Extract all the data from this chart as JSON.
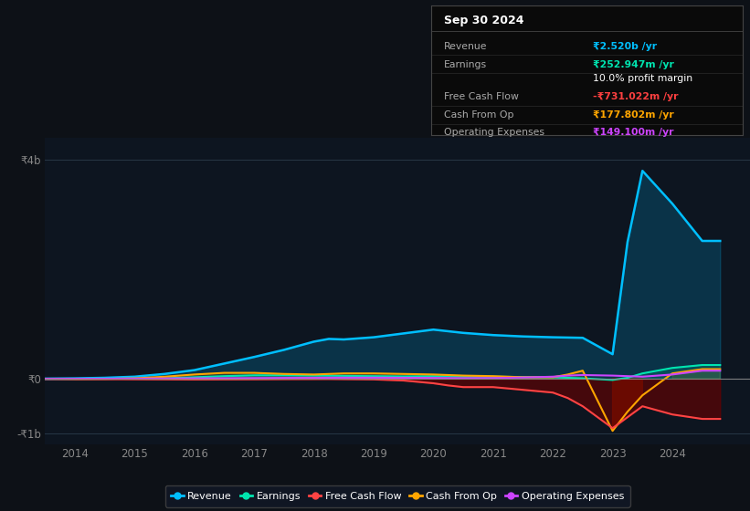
{
  "background_color": "#0d1117",
  "plot_bg_color": "#0d1520",
  "title": "Sep 30 2024",
  "info_box_rows": [
    {
      "label": "Revenue",
      "value": "₹2.520b /yr",
      "value_color": "#00bfff"
    },
    {
      "label": "Earnings",
      "value": "₹252.947m /yr",
      "value_color": "#00e5b0"
    },
    {
      "label": "",
      "value": "10.0% profit margin",
      "value_color": "#ffffff"
    },
    {
      "label": "Free Cash Flow",
      "value": "-₹731.022m /yr",
      "value_color": "#ff4040"
    },
    {
      "label": "Cash From Op",
      "value": "₹177.802m /yr",
      "value_color": "#ffa500"
    },
    {
      "label": "Operating Expenses",
      "value": "₹149.100m /yr",
      "value_color": "#cc44ff"
    }
  ],
  "years": [
    2013.5,
    2014.0,
    2014.5,
    2015.0,
    2015.5,
    2016.0,
    2016.5,
    2017.0,
    2017.5,
    2018.0,
    2018.25,
    2018.5,
    2019.0,
    2019.5,
    2020.0,
    2020.25,
    2020.5,
    2021.0,
    2021.5,
    2022.0,
    2022.25,
    2022.5,
    2023.0,
    2023.25,
    2023.5,
    2024.0,
    2024.5,
    2024.8
  ],
  "revenue": [
    5000000,
    10000000,
    20000000,
    40000000,
    90000000,
    160000000,
    280000000,
    400000000,
    530000000,
    680000000,
    730000000,
    720000000,
    760000000,
    830000000,
    900000000,
    870000000,
    840000000,
    800000000,
    775000000,
    760000000,
    755000000,
    750000000,
    450000000,
    2500000000,
    3800000000,
    3200000000,
    2520000000,
    2520000000
  ],
  "earnings": [
    0,
    0,
    2000000,
    5000000,
    12000000,
    30000000,
    50000000,
    65000000,
    65000000,
    60000000,
    58000000,
    55000000,
    50000000,
    45000000,
    50000000,
    48000000,
    42000000,
    40000000,
    35000000,
    30000000,
    20000000,
    10000000,
    -20000000,
    20000000,
    100000000,
    200000000,
    252947000,
    252947000
  ],
  "free_cash_flow": [
    0,
    -3000000,
    -5000000,
    -8000000,
    -10000000,
    -12000000,
    -10000000,
    -8000000,
    -5000000,
    -3000000,
    -2000000,
    -5000000,
    -10000000,
    -30000000,
    -80000000,
    -120000000,
    -150000000,
    -150000000,
    -200000000,
    -250000000,
    -350000000,
    -500000000,
    -900000000,
    -700000000,
    -500000000,
    -650000000,
    -731022000,
    -731022000
  ],
  "cash_from_op": [
    0,
    -3000000,
    0,
    10000000,
    40000000,
    80000000,
    110000000,
    110000000,
    90000000,
    80000000,
    90000000,
    100000000,
    100000000,
    90000000,
    80000000,
    70000000,
    60000000,
    50000000,
    30000000,
    30000000,
    80000000,
    150000000,
    -950000000,
    -600000000,
    -300000000,
    100000000,
    177802000,
    177802000
  ],
  "operating_expenses": [
    0,
    2000000,
    3000000,
    5000000,
    8000000,
    10000000,
    12000000,
    15000000,
    18000000,
    20000000,
    21000000,
    22000000,
    22000000,
    20000000,
    18000000,
    16000000,
    14000000,
    15000000,
    25000000,
    40000000,
    60000000,
    70000000,
    60000000,
    50000000,
    40000000,
    80000000,
    149100000,
    149100000
  ],
  "revenue_color": "#00bfff",
  "earnings_color": "#00e5b0",
  "fcf_color": "#ff4444",
  "cfo_color": "#ffa500",
  "opex_color": "#cc44ff",
  "ylim": [
    -1200000000,
    4400000000
  ],
  "yticks": [
    -1000000000,
    0,
    4000000000
  ],
  "ytick_labels": [
    "-₹1b",
    "₹0",
    "₹4b"
  ],
  "xlim": [
    2013.5,
    2025.3
  ],
  "xticks": [
    2014,
    2015,
    2016,
    2017,
    2018,
    2019,
    2020,
    2021,
    2022,
    2023,
    2024
  ],
  "legend_items": [
    {
      "label": "Revenue",
      "color": "#00bfff"
    },
    {
      "label": "Earnings",
      "color": "#00e5b0"
    },
    {
      "label": "Free Cash Flow",
      "color": "#ff4444"
    },
    {
      "label": "Cash From Op",
      "color": "#ffa500"
    },
    {
      "label": "Operating Expenses",
      "color": "#cc44ff"
    }
  ]
}
